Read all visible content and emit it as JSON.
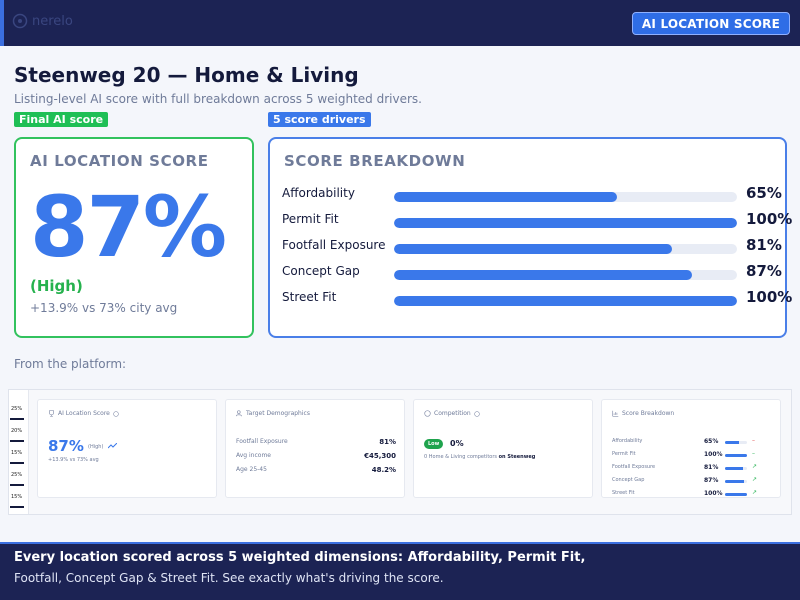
{
  "header": {
    "logo_text": "nerelo",
    "badge_label": "AI LOCATION SCORE"
  },
  "page": {
    "title": "Steenweg 20 — Home & Living",
    "subtitle": "Listing-level AI score with full breakdown across 5 weighted drivers."
  },
  "tags": {
    "final": "Final AI score",
    "drivers": "5 score drivers"
  },
  "score_card": {
    "title": "AI LOCATION SCORE",
    "score": "87%",
    "level": "(High)",
    "vs_avg": "+13.9% vs 73% city avg"
  },
  "breakdown": {
    "title": "SCORE BREAKDOWN",
    "items": [
      {
        "label": "Affordability",
        "value": "65%",
        "pct": 65
      },
      {
        "label": "Permit Fit",
        "value": "100%",
        "pct": 100
      },
      {
        "label": "Footfall Exposure",
        "value": "81%",
        "pct": 81
      },
      {
        "label": "Concept Gap",
        "value": "87%",
        "pct": 87
      },
      {
        "label": "Street Fit",
        "value": "100%",
        "pct": 100
      }
    ]
  },
  "from_label": "From the platform:",
  "platform": {
    "strip": [
      "25%",
      "20%",
      "15%",
      "25%",
      "15%"
    ],
    "score_card": {
      "title": "AI Location Score",
      "score": "87%",
      "level": "(High)",
      "vs_avg": "+13.9% vs 73% avg"
    },
    "demographics": {
      "title": "Target Demographics",
      "rows": [
        {
          "label": "Footfall Exposure",
          "value": "81%"
        },
        {
          "label": "Avg income",
          "value": "€45,300"
        },
        {
          "label": "Age 25-45",
          "value": "48.2%"
        }
      ]
    },
    "competition": {
      "title": "Competition",
      "badge": "Low",
      "value": "0%",
      "note": "0 Home & Living competitors",
      "note_place": "on Steenweg"
    },
    "breakdown": {
      "title": "Score Breakdown",
      "items": [
        {
          "label": "Affordability",
          "value": "65%",
          "pct": 65,
          "trend": "flat"
        },
        {
          "label": "Permit Fit",
          "value": "100%",
          "pct": 100,
          "trend": "flat"
        },
        {
          "label": "Footfall Exposure",
          "value": "81%",
          "pct": 81,
          "trend": "up"
        },
        {
          "label": "Concept Gap",
          "value": "87%",
          "pct": 87,
          "trend": "up"
        },
        {
          "label": "Street Fit",
          "value": "100%",
          "pct": 100,
          "trend": "up"
        }
      ]
    }
  },
  "footer": {
    "line1": "Every location scored across 5 weighted dimensions: Affordability, Permit Fit,",
    "line2": "Footfall, Concept Gap & Street Fit. See exactly what's driving the score."
  },
  "colors": {
    "navy": "#1c2354",
    "accent_blue": "#3a78ea",
    "green": "#1fbf55",
    "muted": "#6f7b99"
  },
  "icons": [
    "location-pin-icon",
    "trophy-icon",
    "users-icon",
    "store-icon",
    "chart-icon",
    "info-icon",
    "trend-up-icon",
    "trend-flat-icon"
  ]
}
